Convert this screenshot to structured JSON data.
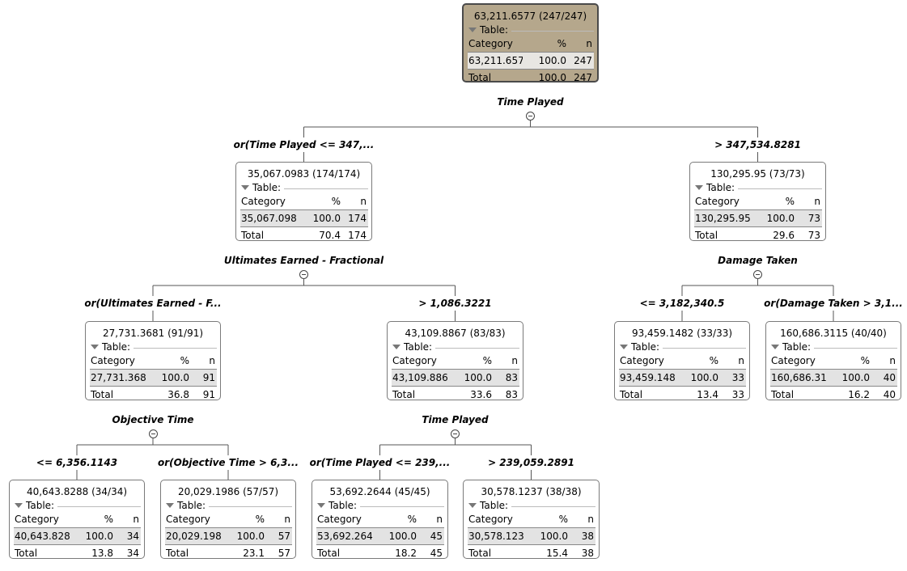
{
  "nodes": [
    {
      "id": "n0",
      "title": "63,211.6577 (247/247)",
      "table_label": "Table:",
      "header": {
        "category": "Category",
        "pct": "%",
        "n": "n"
      },
      "row": {
        "category": "63,211.6577",
        "pct": "100.0",
        "n": "247"
      },
      "total": {
        "label": "Total",
        "pct": "100.0",
        "n": "247"
      }
    },
    {
      "id": "n1",
      "title": "35,067.0983 (174/174)",
      "table_label": "Table:",
      "header": {
        "category": "Category",
        "pct": "%",
        "n": "n"
      },
      "row": {
        "category": "35,067.0983",
        "pct": "100.0",
        "n": "174"
      },
      "total": {
        "label": "Total",
        "pct": "70.4",
        "n": "174"
      }
    },
    {
      "id": "n2",
      "title": "130,295.95 (73/73)",
      "table_label": "Table:",
      "header": {
        "category": "Category",
        "pct": "%",
        "n": "n"
      },
      "row": {
        "category": "130,295.95",
        "pct": "100.0",
        "n": "73"
      },
      "total": {
        "label": "Total",
        "pct": "29.6",
        "n": "73"
      }
    },
    {
      "id": "n3",
      "title": "27,731.3681 (91/91)",
      "table_label": "Table:",
      "header": {
        "category": "Category",
        "pct": "%",
        "n": "n"
      },
      "row": {
        "category": "27,731.3681",
        "pct": "100.0",
        "n": "91"
      },
      "total": {
        "label": "Total",
        "pct": "36.8",
        "n": "91"
      }
    },
    {
      "id": "n4",
      "title": "43,109.8867 (83/83)",
      "table_label": "Table:",
      "header": {
        "category": "Category",
        "pct": "%",
        "n": "n"
      },
      "row": {
        "category": "43,109.8867",
        "pct": "100.0",
        "n": "83"
      },
      "total": {
        "label": "Total",
        "pct": "33.6",
        "n": "83"
      }
    },
    {
      "id": "n5",
      "title": "93,459.1482 (33/33)",
      "table_label": "Table:",
      "header": {
        "category": "Category",
        "pct": "%",
        "n": "n"
      },
      "row": {
        "category": "93,459.1482",
        "pct": "100.0",
        "n": "33"
      },
      "total": {
        "label": "Total",
        "pct": "13.4",
        "n": "33"
      }
    },
    {
      "id": "n6",
      "title": "160,686.3115 (40/40)",
      "table_label": "Table:",
      "header": {
        "category": "Category",
        "pct": "%",
        "n": "n"
      },
      "row": {
        "category": "160,686.3115",
        "pct": "100.0",
        "n": "40"
      },
      "total": {
        "label": "Total",
        "pct": "16.2",
        "n": "40"
      }
    },
    {
      "id": "n7",
      "title": "40,643.8288 (34/34)",
      "table_label": "Table:",
      "header": {
        "category": "Category",
        "pct": "%",
        "n": "n"
      },
      "row": {
        "category": "40,643.8288",
        "pct": "100.0",
        "n": "34"
      },
      "total": {
        "label": "Total",
        "pct": "13.8",
        "n": "34"
      }
    },
    {
      "id": "n8",
      "title": "20,029.1986 (57/57)",
      "table_label": "Table:",
      "header": {
        "category": "Category",
        "pct": "%",
        "n": "n"
      },
      "row": {
        "category": "20,029.1986",
        "pct": "100.0",
        "n": "57"
      },
      "total": {
        "label": "Total",
        "pct": "23.1",
        "n": "57"
      }
    },
    {
      "id": "n9",
      "title": "53,692.2644 (45/45)",
      "table_label": "Table:",
      "header": {
        "category": "Category",
        "pct": "%",
        "n": "n"
      },
      "row": {
        "category": "53,692.2644",
        "pct": "100.0",
        "n": "45"
      },
      "total": {
        "label": "Total",
        "pct": "18.2",
        "n": "45"
      }
    },
    {
      "id": "n10",
      "title": "30,578.1237 (38/38)",
      "table_label": "Table:",
      "header": {
        "category": "Category",
        "pct": "%",
        "n": "n"
      },
      "row": {
        "category": "30,578.1237",
        "pct": "100.0",
        "n": "38"
      },
      "total": {
        "label": "Total",
        "pct": "15.4",
        "n": "38"
      }
    }
  ],
  "splits": [
    {
      "parent": "n0",
      "variable": "Time Played",
      "children": [
        {
          "node": "n1",
          "condition": "or(Time Played <= 347,..."
        },
        {
          "node": "n2",
          "condition": "> 347,534.8281"
        }
      ]
    },
    {
      "parent": "n1",
      "variable": "Ultimates Earned - Fractional",
      "children": [
        {
          "node": "n3",
          "condition": "or(Ultimates Earned - F..."
        },
        {
          "node": "n4",
          "condition": "> 1,086.3221"
        }
      ]
    },
    {
      "parent": "n2",
      "variable": "Damage Taken",
      "children": [
        {
          "node": "n5",
          "condition": "<= 3,182,340.5"
        },
        {
          "node": "n6",
          "condition": "or(Damage Taken > 3,1..."
        }
      ]
    },
    {
      "parent": "n3",
      "variable": "Objective Time",
      "children": [
        {
          "node": "n7",
          "condition": "<= 6,356.1143"
        },
        {
          "node": "n8",
          "condition": "or(Objective Time > 6,3..."
        }
      ]
    },
    {
      "parent": "n4",
      "variable": "Time Played",
      "children": [
        {
          "node": "n9",
          "condition": "or(Time Played <= 239,..."
        },
        {
          "node": "n10",
          "condition": "> 239,059.2891"
        }
      ]
    }
  ]
}
